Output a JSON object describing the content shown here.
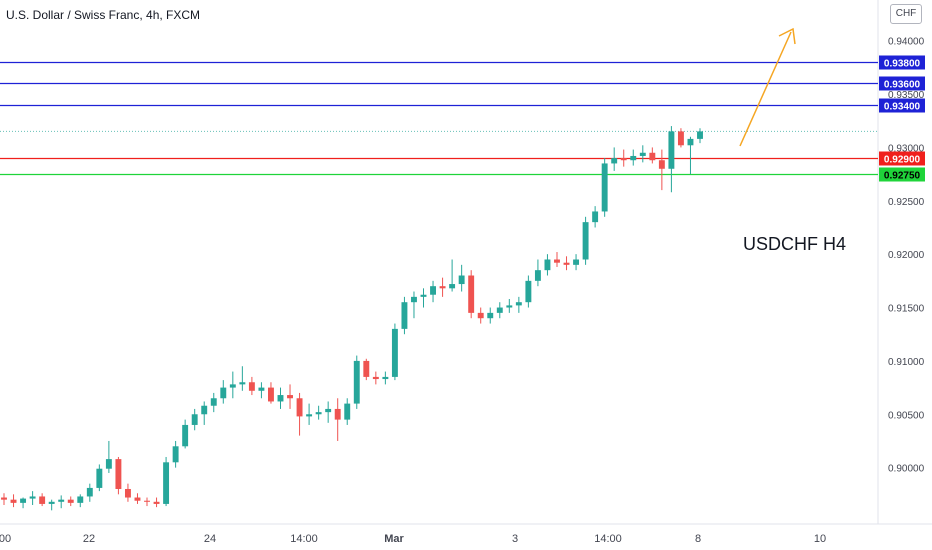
{
  "header": {
    "title": "U.S. Dollar / Swiss Franc, 4h, FXCM",
    "currency": "CHF"
  },
  "chart_data": {
    "type": "candlestick",
    "ylim": [
      0.8965,
      0.9425
    ],
    "y_ticks": [
      "0.94000",
      "0.93500",
      "0.93000",
      "0.92500",
      "0.92000",
      "0.91500",
      "0.91000",
      "0.90500",
      "0.90000"
    ],
    "x_ticks": [
      {
        "label": "00",
        "bold": false
      },
      {
        "label": "22",
        "bold": false
      },
      {
        "label": "24",
        "bold": false
      },
      {
        "label": "14:00",
        "bold": false
      },
      {
        "label": "Mar",
        "bold": true
      },
      {
        "label": "3",
        "bold": false
      },
      {
        "label": "14:00",
        "bold": false
      },
      {
        "label": "8",
        "bold": false
      },
      {
        "label": "10",
        "bold": false
      }
    ],
    "levels": [
      {
        "value": 0.938,
        "label": "0.93800",
        "color": "#1e22d6"
      },
      {
        "value": 0.936,
        "label": "0.93600",
        "color": "#1e22d6"
      },
      {
        "value": 0.934,
        "label": "0.93400",
        "color": "#1e22d6"
      },
      {
        "value": 0.929,
        "label": "0.92900",
        "color": "#f0201c"
      },
      {
        "value": 0.9275,
        "label": "0.92750",
        "color": "#1fd43a"
      }
    ],
    "last_price": 0.9315,
    "up_color": "#26a69a",
    "down_color": "#ef5350",
    "annotation": "USDCHF H4",
    "arrow_color": "#f5a623",
    "candles": [
      [
        0.8972,
        0.8976,
        0.8965,
        0.897
      ],
      [
        0.897,
        0.8975,
        0.8963,
        0.8967
      ],
      [
        0.8967,
        0.8972,
        0.8962,
        0.8971
      ],
      [
        0.8971,
        0.8978,
        0.8965,
        0.8973
      ],
      [
        0.8973,
        0.8976,
        0.8964,
        0.8966
      ],
      [
        0.8966,
        0.897,
        0.896,
        0.8968
      ],
      [
        0.8968,
        0.8974,
        0.8962,
        0.897
      ],
      [
        0.897,
        0.8973,
        0.8964,
        0.8967
      ],
      [
        0.8967,
        0.8975,
        0.8963,
        0.8973
      ],
      [
        0.8973,
        0.8985,
        0.8968,
        0.8981
      ],
      [
        0.8981,
        0.9003,
        0.8978,
        0.8999
      ],
      [
        0.8999,
        0.9025,
        0.8995,
        0.9008
      ],
      [
        0.9008,
        0.901,
        0.8975,
        0.898
      ],
      [
        0.898,
        0.8985,
        0.8968,
        0.8972
      ],
      [
        0.8972,
        0.8976,
        0.8966,
        0.8969
      ],
      [
        0.8969,
        0.8972,
        0.8964,
        0.8968
      ],
      [
        0.8968,
        0.8972,
        0.8963,
        0.8966
      ],
      [
        0.8966,
        0.901,
        0.8964,
        0.9005
      ],
      [
        0.9005,
        0.9025,
        0.9,
        0.902
      ],
      [
        0.902,
        0.9045,
        0.9018,
        0.904
      ],
      [
        0.904,
        0.9055,
        0.9035,
        0.905
      ],
      [
        0.905,
        0.9062,
        0.904,
        0.9058
      ],
      [
        0.9058,
        0.907,
        0.9052,
        0.9065
      ],
      [
        0.9065,
        0.9082,
        0.906,
        0.9075
      ],
      [
        0.9075,
        0.909,
        0.9065,
        0.9078
      ],
      [
        0.9078,
        0.9095,
        0.9072,
        0.908
      ],
      [
        0.908,
        0.9085,
        0.9068,
        0.9072
      ],
      [
        0.9072,
        0.908,
        0.9065,
        0.9075
      ],
      [
        0.9075,
        0.908,
        0.906,
        0.9062
      ],
      [
        0.9062,
        0.9075,
        0.9055,
        0.9068
      ],
      [
        0.9068,
        0.9078,
        0.9055,
        0.9065
      ],
      [
        0.9065,
        0.907,
        0.903,
        0.9048
      ],
      [
        0.9048,
        0.906,
        0.904,
        0.905
      ],
      [
        0.905,
        0.9058,
        0.9045,
        0.9052
      ],
      [
        0.9052,
        0.9062,
        0.9042,
        0.9055
      ],
      [
        0.9055,
        0.9065,
        0.9025,
        0.9045
      ],
      [
        0.9045,
        0.9065,
        0.904,
        0.906
      ],
      [
        0.906,
        0.9105,
        0.9055,
        0.91
      ],
      [
        0.91,
        0.9102,
        0.9082,
        0.9085
      ],
      [
        0.9085,
        0.909,
        0.9078,
        0.9083
      ],
      [
        0.9083,
        0.909,
        0.9078,
        0.9085
      ],
      [
        0.9085,
        0.9135,
        0.9082,
        0.913
      ],
      [
        0.913,
        0.916,
        0.9125,
        0.9155
      ],
      [
        0.9155,
        0.9165,
        0.914,
        0.916
      ],
      [
        0.916,
        0.9168,
        0.915,
        0.9162
      ],
      [
        0.9162,
        0.9175,
        0.9155,
        0.917
      ],
      [
        0.917,
        0.9178,
        0.916,
        0.9168
      ],
      [
        0.9168,
        0.9195,
        0.9165,
        0.9172
      ],
      [
        0.9172,
        0.919,
        0.9165,
        0.918
      ],
      [
        0.918,
        0.9185,
        0.914,
        0.9145
      ],
      [
        0.9145,
        0.915,
        0.9135,
        0.914
      ],
      [
        0.914,
        0.915,
        0.9135,
        0.9145
      ],
      [
        0.9145,
        0.9155,
        0.914,
        0.915
      ],
      [
        0.915,
        0.9158,
        0.9145,
        0.9152
      ],
      [
        0.9152,
        0.916,
        0.9145,
        0.9155
      ],
      [
        0.9155,
        0.918,
        0.915,
        0.9175
      ],
      [
        0.9175,
        0.9195,
        0.917,
        0.9185
      ],
      [
        0.9185,
        0.92,
        0.918,
        0.9195
      ],
      [
        0.9195,
        0.9202,
        0.9188,
        0.9192
      ],
      [
        0.9192,
        0.9198,
        0.9185,
        0.919
      ],
      [
        0.919,
        0.92,
        0.9185,
        0.9195
      ],
      [
        0.9195,
        0.9235,
        0.919,
        0.923
      ],
      [
        0.923,
        0.9245,
        0.9225,
        0.924
      ],
      [
        0.924,
        0.929,
        0.9235,
        0.9285
      ],
      [
        0.9285,
        0.93,
        0.9278,
        0.929
      ],
      [
        0.929,
        0.9298,
        0.9282,
        0.9288
      ],
      [
        0.9288,
        0.9298,
        0.9283,
        0.9292
      ],
      [
        0.9292,
        0.9302,
        0.9286,
        0.9295
      ],
      [
        0.9295,
        0.93,
        0.9285,
        0.9288
      ],
      [
        0.9288,
        0.9298,
        0.926,
        0.928
      ],
      [
        0.928,
        0.932,
        0.9258,
        0.9315
      ],
      [
        0.9315,
        0.9318,
        0.93,
        0.9302
      ],
      [
        0.9302,
        0.931,
        0.9275,
        0.9308
      ],
      [
        0.9308,
        0.9318,
        0.9304,
        0.9315
      ]
    ]
  }
}
